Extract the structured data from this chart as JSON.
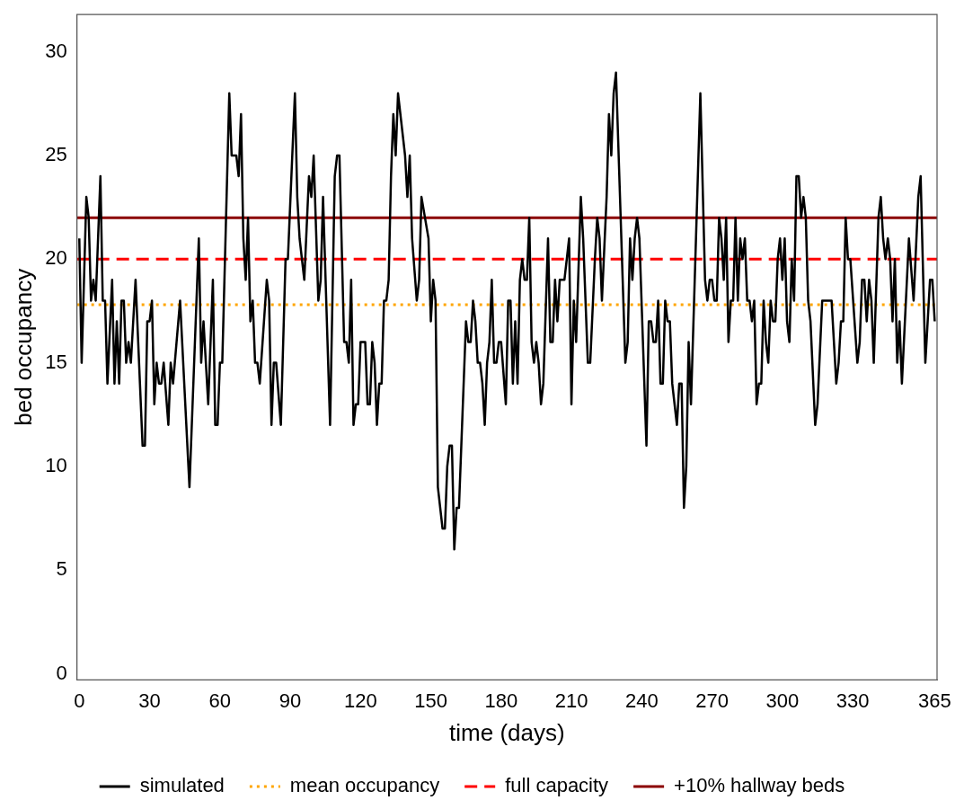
{
  "chart_data": {
    "type": "line",
    "xlabel": "time (days)",
    "ylabel": "bed occupancy",
    "x": [
      0,
      1,
      3,
      4,
      5,
      6,
      7,
      9,
      10,
      11,
      12,
      14,
      15,
      16,
      17,
      18,
      19,
      20,
      21,
      22,
      24,
      27,
      28,
      29,
      30,
      31,
      32,
      33,
      34,
      35,
      36,
      38,
      39,
      40,
      43,
      47,
      51,
      52,
      53,
      55,
      57,
      58,
      59,
      60,
      61,
      64,
      65,
      67,
      68,
      69,
      70,
      71,
      72,
      73,
      74,
      75,
      76,
      77,
      80,
      81,
      82,
      83,
      84,
      86,
      88,
      89,
      92,
      93,
      94,
      96,
      98,
      99,
      100,
      102,
      103,
      104,
      107,
      109,
      110,
      111,
      113,
      114,
      115,
      116,
      117,
      118,
      119,
      120,
      122,
      123,
      124,
      125,
      126,
      127,
      128,
      129,
      130,
      131,
      132,
      133,
      134,
      135,
      136,
      139,
      140,
      141,
      142,
      144,
      145,
      146,
      149,
      150,
      151,
      152,
      153,
      155,
      156,
      157,
      158,
      159,
      160,
      161,
      162,
      165,
      166,
      167,
      168,
      169,
      170,
      171,
      172,
      173,
      174,
      175,
      176,
      177,
      178,
      179,
      180,
      182,
      183,
      184,
      185,
      186,
      187,
      188,
      189,
      190,
      191,
      192,
      193,
      194,
      195,
      196,
      197,
      198,
      200,
      201,
      202,
      203,
      204,
      205,
      207,
      209,
      210,
      211,
      212,
      214,
      215,
      217,
      218,
      220,
      221,
      222,
      223,
      225,
      226,
      227,
      228,
      229,
      231,
      233,
      234,
      235,
      236,
      237,
      238,
      239,
      242,
      243,
      244,
      245,
      246,
      247,
      248,
      249,
      250,
      251,
      252,
      253,
      255,
      256,
      257,
      258,
      259,
      260,
      261,
      265,
      267,
      268,
      269,
      270,
      271,
      272,
      273,
      274,
      275,
      276,
      277,
      278,
      279,
      280,
      281,
      282,
      283,
      284,
      285,
      286,
      287,
      288,
      289,
      290,
      291,
      292,
      293,
      294,
      295,
      296,
      297,
      298,
      299,
      300,
      301,
      302,
      303,
      304,
      305,
      306,
      307,
      308,
      309,
      310,
      311,
      312,
      314,
      315,
      317,
      321,
      323,
      324,
      325,
      326,
      327,
      328,
      329,
      332,
      333,
      334,
      335,
      336,
      337,
      338,
      339,
      341,
      342,
      343,
      344,
      345,
      346,
      347,
      348,
      349,
      350,
      351,
      354,
      356,
      358,
      359,
      361,
      363,
      364,
      365
    ],
    "series": [
      {
        "name": "simulated",
        "color": "#000000",
        "line_style": "solid",
        "values": [
          21,
          15,
          23,
          22,
          18,
          19,
          18,
          24,
          18,
          18,
          14,
          19,
          14,
          17,
          14,
          18,
          18,
          15,
          16,
          15,
          19,
          11,
          11,
          17,
          17,
          18,
          13,
          15,
          14,
          14,
          15,
          12,
          15,
          14,
          18,
          9,
          21,
          15,
          17,
          13,
          19,
          12,
          12,
          15,
          15,
          28,
          25,
          25,
          24,
          27,
          21,
          19,
          22,
          17,
          18,
          15,
          15,
          14,
          19,
          18,
          12,
          15,
          15,
          12,
          20,
          20,
          28,
          23,
          21,
          19,
          24,
          23,
          25,
          18,
          19,
          23,
          12,
          24,
          25,
          25,
          16,
          16,
          15,
          19,
          12,
          13,
          13,
          16,
          16,
          13,
          13,
          16,
          15,
          12,
          14,
          14,
          18,
          18,
          19,
          24,
          27,
          25,
          28,
          25,
          23,
          25,
          21,
          18,
          19,
          23,
          21,
          17,
          19,
          18,
          9,
          7,
          7,
          10,
          11,
          11,
          6,
          8,
          8,
          17,
          16,
          16,
          18,
          17,
          15,
          15,
          14,
          12,
          15,
          16,
          19,
          15,
          15,
          16,
          16,
          13,
          18,
          18,
          14,
          17,
          14,
          19,
          20,
          19,
          19,
          22,
          16,
          15,
          16,
          15,
          13,
          14,
          21,
          16,
          16,
          19,
          17,
          19,
          19,
          21,
          13,
          18,
          16,
          23,
          21,
          15,
          15,
          20,
          22,
          21,
          18,
          23,
          27,
          25,
          28,
          29,
          22,
          15,
          16,
          21,
          19,
          21,
          22,
          21,
          11,
          17,
          17,
          16,
          16,
          18,
          14,
          14,
          18,
          17,
          17,
          14,
          12,
          14,
          14,
          8,
          10,
          16,
          13,
          28,
          19,
          18,
          19,
          19,
          18,
          18,
          22,
          21,
          19,
          22,
          16,
          18,
          18,
          22,
          18,
          21,
          20,
          21,
          18,
          18,
          17,
          18,
          13,
          14,
          14,
          18,
          16,
          15,
          18,
          17,
          17,
          20,
          21,
          19,
          21,
          17,
          16,
          20,
          18,
          24,
          24,
          22,
          23,
          22,
          18,
          17,
          12,
          13,
          18,
          18,
          14,
          15,
          17,
          17,
          22,
          20,
          20,
          15,
          16,
          19,
          19,
          17,
          19,
          18,
          15,
          22,
          23,
          21,
          20,
          21,
          20,
          17,
          20,
          15,
          17,
          14,
          21,
          18,
          23,
          24,
          15,
          19,
          19,
          17
        ]
      }
    ],
    "ref_lines": [
      {
        "axis": "y",
        "value": 17.8,
        "label": "mean occupancy",
        "color": "#ffa500",
        "line_style": "dotted"
      },
      {
        "axis": "y",
        "value": 20,
        "label": "full capacity",
        "color": "#ff0000",
        "line_style": "dashed"
      },
      {
        "axis": "y",
        "value": 22,
        "label": "+10% hallway beds",
        "color": "#8b0000",
        "line_style": "solid"
      }
    ],
    "xlim": [
      -1,
      366
    ],
    "ylim": [
      -0.3,
      31.8
    ],
    "xticks": [
      0,
      30,
      60,
      90,
      120,
      150,
      180,
      210,
      240,
      270,
      300,
      330,
      365
    ],
    "yticks": [
      0,
      5,
      10,
      15,
      20,
      25,
      30
    ],
    "grid": false,
    "legend": "bottom",
    "marker": "none"
  }
}
